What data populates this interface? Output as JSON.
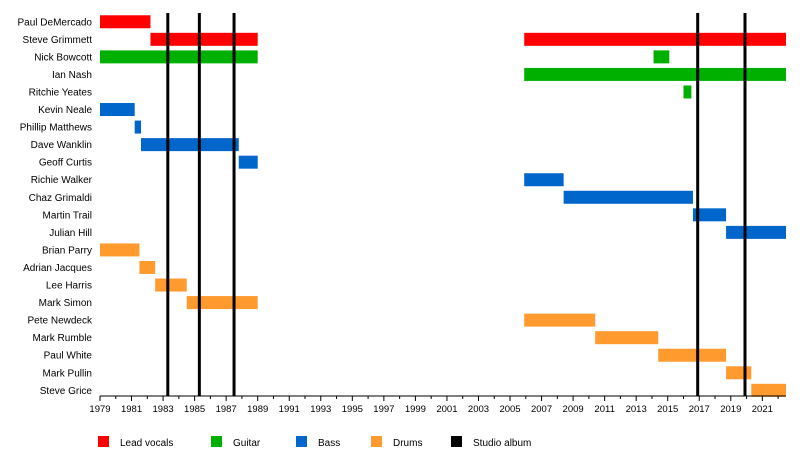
{
  "chart_data": {
    "type": "timeline",
    "title": "",
    "x_range": [
      1979,
      2022.5
    ],
    "x_ticks": [
      "1979",
      "1981",
      "1983",
      "1985",
      "1987",
      "1989",
      "1991",
      "1993",
      "1995",
      "1997",
      "1999",
      "2001",
      "2003",
      "2005",
      "2007",
      "2009",
      "2011",
      "2013",
      "2015",
      "2017",
      "2019",
      "2021"
    ],
    "roles": [
      {
        "key": "vocals",
        "label": "Lead vocals",
        "color": "#ff0000"
      },
      {
        "key": "guitar",
        "label": "Guitar",
        "color": "#00b000"
      },
      {
        "key": "bass",
        "label": "Bass",
        "color": "#0066cc"
      },
      {
        "key": "drums",
        "label": "Drums",
        "color": "#ff9a2e"
      },
      {
        "key": "album",
        "label": "Studio album",
        "color": "#000000"
      }
    ],
    "members": [
      {
        "name": "Paul DeMercado",
        "periods": [
          {
            "role": "vocals",
            "start": 1979.0,
            "end": 1982.2
          }
        ]
      },
      {
        "name": "Steve Grimmett",
        "periods": [
          {
            "role": "vocals",
            "start": 1982.2,
            "end": 1989.0
          },
          {
            "role": "vocals",
            "start": 2005.9,
            "end": 2022.5
          }
        ]
      },
      {
        "name": "Nick Bowcott",
        "periods": [
          {
            "role": "guitar",
            "start": 1979.0,
            "end": 1989.0
          },
          {
            "role": "guitar",
            "start": 2014.1,
            "end": 2015.1
          }
        ]
      },
      {
        "name": "Ian Nash",
        "periods": [
          {
            "role": "guitar",
            "start": 2005.9,
            "end": 2022.5
          }
        ]
      },
      {
        "name": "Ritchie Yeates",
        "periods": [
          {
            "role": "guitar",
            "start": 2016.0,
            "end": 2016.5
          }
        ]
      },
      {
        "name": "Kevin Neale",
        "periods": [
          {
            "role": "bass",
            "start": 1979.0,
            "end": 1981.2
          }
        ]
      },
      {
        "name": "Phillip Matthews",
        "periods": [
          {
            "role": "bass",
            "start": 1981.2,
            "end": 1981.6
          }
        ]
      },
      {
        "name": "Dave Wanklin",
        "periods": [
          {
            "role": "bass",
            "start": 1981.6,
            "end": 1987.8
          }
        ]
      },
      {
        "name": "Geoff Curtis",
        "periods": [
          {
            "role": "bass",
            "start": 1987.8,
            "end": 1989.0
          }
        ]
      },
      {
        "name": "Richie Walker",
        "periods": [
          {
            "role": "bass",
            "start": 2005.9,
            "end": 2008.4
          }
        ]
      },
      {
        "name": "Chaz Grimaldi",
        "periods": [
          {
            "role": "bass",
            "start": 2008.4,
            "end": 2016.6
          }
        ]
      },
      {
        "name": "Martin Trail",
        "periods": [
          {
            "role": "bass",
            "start": 2016.6,
            "end": 2018.7
          }
        ]
      },
      {
        "name": "Julian Hill",
        "periods": [
          {
            "role": "bass",
            "start": 2018.7,
            "end": 2022.5
          }
        ]
      },
      {
        "name": "Brian Parry",
        "periods": [
          {
            "role": "drums",
            "start": 1979.0,
            "end": 1981.5
          }
        ]
      },
      {
        "name": "Adrian Jacques",
        "periods": [
          {
            "role": "drums",
            "start": 1981.5,
            "end": 1982.5
          }
        ]
      },
      {
        "name": "Lee Harris",
        "periods": [
          {
            "role": "drums",
            "start": 1982.5,
            "end": 1984.5
          }
        ]
      },
      {
        "name": "Mark Simon",
        "periods": [
          {
            "role": "drums",
            "start": 1984.5,
            "end": 1989.0
          }
        ]
      },
      {
        "name": "Pete Newdeck",
        "periods": [
          {
            "role": "drums",
            "start": 2005.9,
            "end": 2010.4
          }
        ]
      },
      {
        "name": "Mark Rumble",
        "periods": [
          {
            "role": "drums",
            "start": 2010.4,
            "end": 2014.4
          }
        ]
      },
      {
        "name": "Paul White",
        "periods": [
          {
            "role": "drums",
            "start": 2014.4,
            "end": 2018.7
          }
        ]
      },
      {
        "name": "Mark Pullin",
        "periods": [
          {
            "role": "drums",
            "start": 2018.7,
            "end": 2020.3
          }
        ]
      },
      {
        "name": "Steve Grice",
        "periods": [
          {
            "role": "drums",
            "start": 2020.3,
            "end": 2022.5
          }
        ]
      }
    ],
    "studio_albums": [
      1983.3,
      1985.3,
      1987.5,
      2016.9,
      2019.9
    ]
  }
}
